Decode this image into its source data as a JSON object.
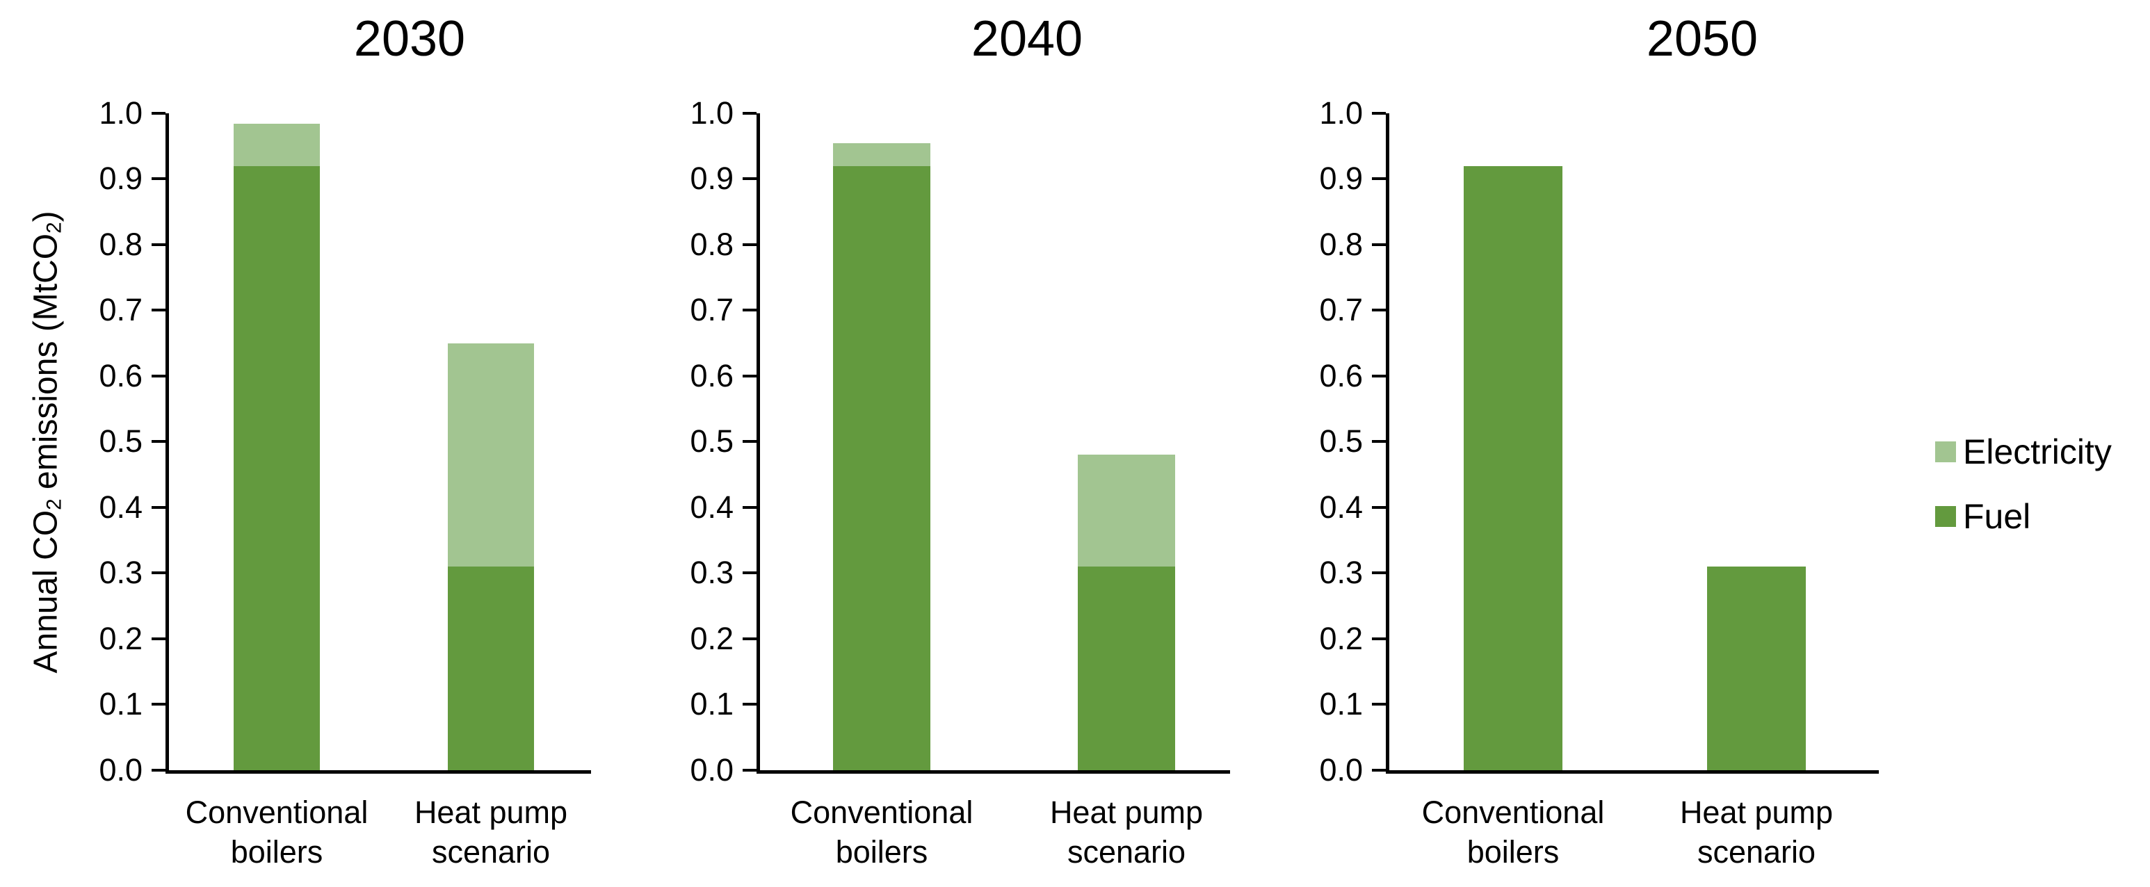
{
  "chart_data": {
    "type": "bar",
    "stacked": true,
    "grid": false,
    "ylabel": "Annual CO2 emissions (MtCO2)",
    "ylabel_parts": [
      {
        "text": "Annual CO"
      },
      {
        "sub": "2"
      },
      {
        "text": " emissions (MtCO"
      },
      {
        "sub": "2"
      },
      {
        "text": ")"
      }
    ],
    "ylim": [
      0.0,
      1.0
    ],
    "ytick_step": 0.1,
    "ytick_labels": [
      "0.0",
      "0.1",
      "0.2",
      "0.3",
      "0.4",
      "0.5",
      "0.6",
      "0.7",
      "0.8",
      "0.9",
      "1.0"
    ],
    "categories": [
      "Conventional boilers",
      "Heat pump scenario"
    ],
    "category_lines": [
      [
        "Conventional",
        "boilers"
      ],
      [
        "Heat pump",
        "scenario"
      ]
    ],
    "stack_order": [
      "Fuel",
      "Electricity"
    ],
    "series_colors": {
      "Fuel": "#639a3e",
      "Electricity": "#a2c591"
    },
    "panels": [
      {
        "title": "2030",
        "series": [
          {
            "name": "Fuel",
            "values": [
              0.92,
              0.31
            ]
          },
          {
            "name": "Electricity",
            "values": [
              0.065,
              0.34
            ]
          }
        ]
      },
      {
        "title": "2040",
        "series": [
          {
            "name": "Fuel",
            "values": [
              0.92,
              0.31
            ]
          },
          {
            "name": "Electricity",
            "values": [
              0.035,
              0.17
            ]
          }
        ]
      },
      {
        "title": "2050",
        "series": [
          {
            "name": "Fuel",
            "values": [
              0.92,
              0.31
            ]
          },
          {
            "name": "Electricity",
            "values": [
              0.0,
              0.0
            ]
          }
        ]
      }
    ],
    "legend": {
      "position": "right",
      "entries": [
        {
          "label": "Electricity",
          "color": "#a2c591"
        },
        {
          "label": "Fuel",
          "color": "#639a3e"
        }
      ]
    }
  }
}
